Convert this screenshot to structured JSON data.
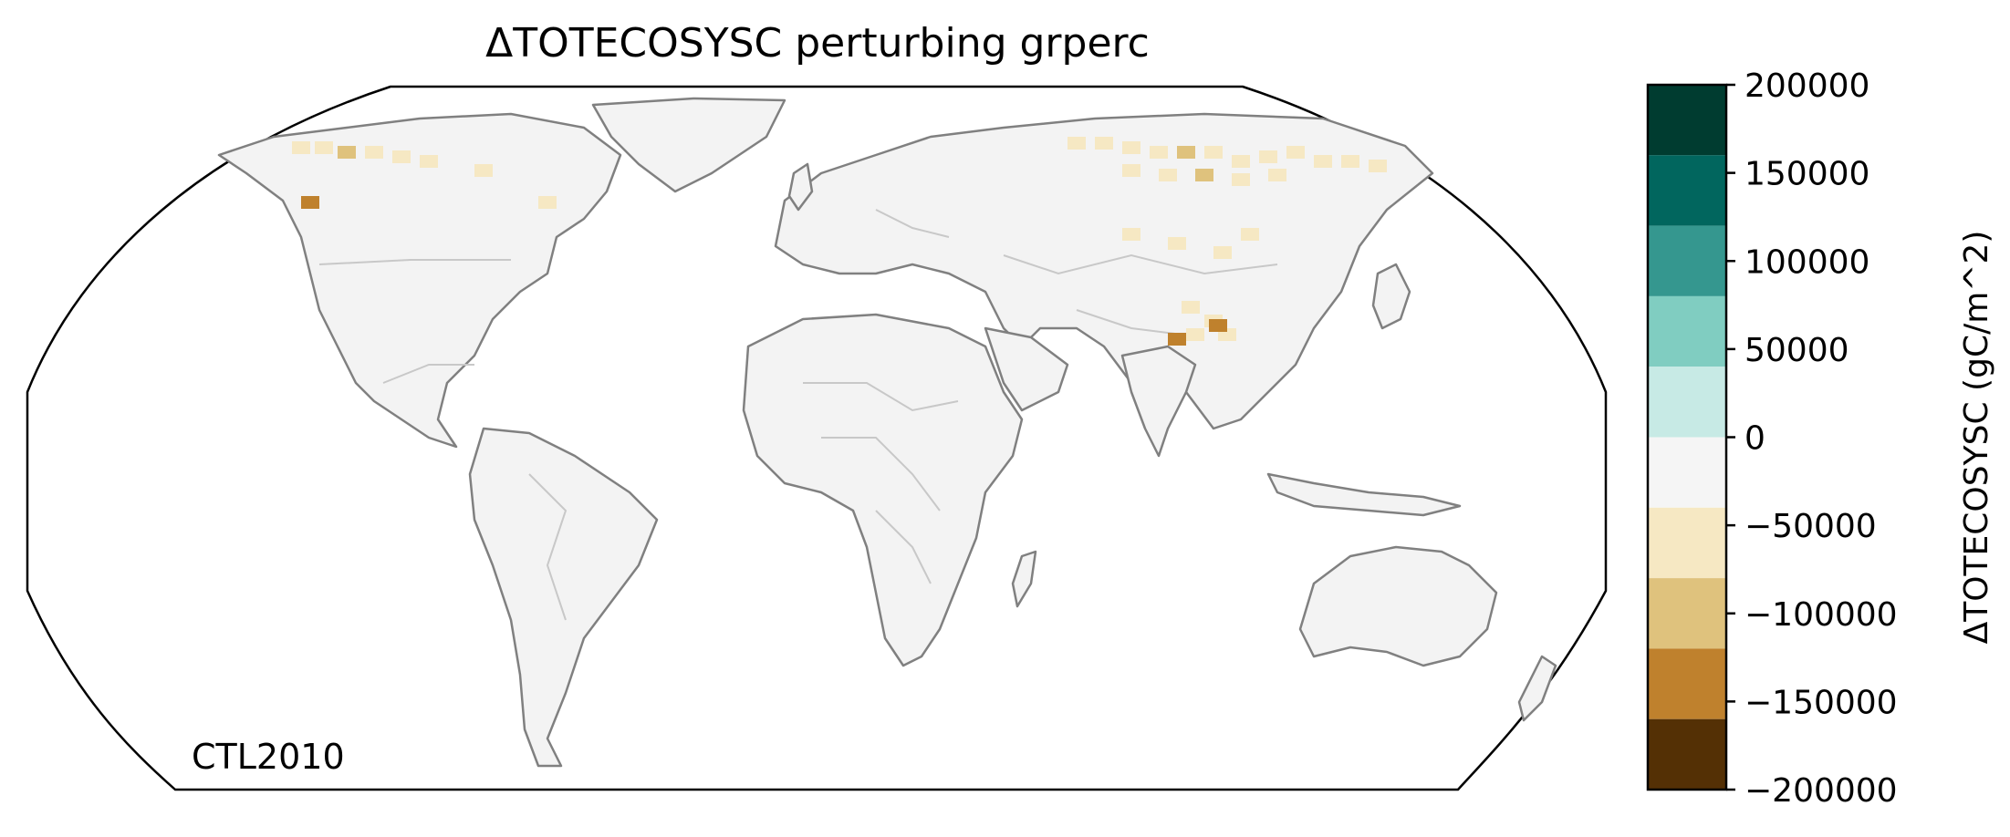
{
  "title": "ΔTOTECOSYSC perturbing grperc",
  "corner_label": "CTL2010",
  "colorbar": {
    "label": "ΔTOTECOSYSC (gC/m^2)",
    "ticks": [
      200000,
      150000,
      100000,
      50000,
      0,
      -50000,
      -100000,
      -150000,
      -200000
    ],
    "tick_labels": [
      "200000",
      "150000",
      "100000",
      "50000",
      "0",
      "−50000",
      "−100000",
      "−150000",
      "−200000"
    ],
    "min": -200000,
    "max": 200000,
    "bins": [
      {
        "from": 160000,
        "to": 200000,
        "color": "#003c30"
      },
      {
        "from": 120000,
        "to": 160000,
        "color": "#01665e"
      },
      {
        "from": 80000,
        "to": 120000,
        "color": "#35978f"
      },
      {
        "from": 40000,
        "to": 80000,
        "color": "#80cdc1"
      },
      {
        "from": 0,
        "to": 40000,
        "color": "#c7eae5"
      },
      {
        "from": -40000,
        "to": 0,
        "color": "#f5f5f5"
      },
      {
        "from": -80000,
        "to": -40000,
        "color": "#f6e8c3"
      },
      {
        "from": -120000,
        "to": -80000,
        "color": "#dfc27d"
      },
      {
        "from": -160000,
        "to": -120000,
        "color": "#bf812d"
      },
      {
        "from": -200000,
        "to": -160000,
        "color": "#543005"
      }
    ],
    "extra_bin_color": "#8c510a"
  },
  "map": {
    "projection": "robinson",
    "land_color": "#f3f3f3",
    "coastline_color": "#808080",
    "border_color": "#c8c8c8"
  }
}
